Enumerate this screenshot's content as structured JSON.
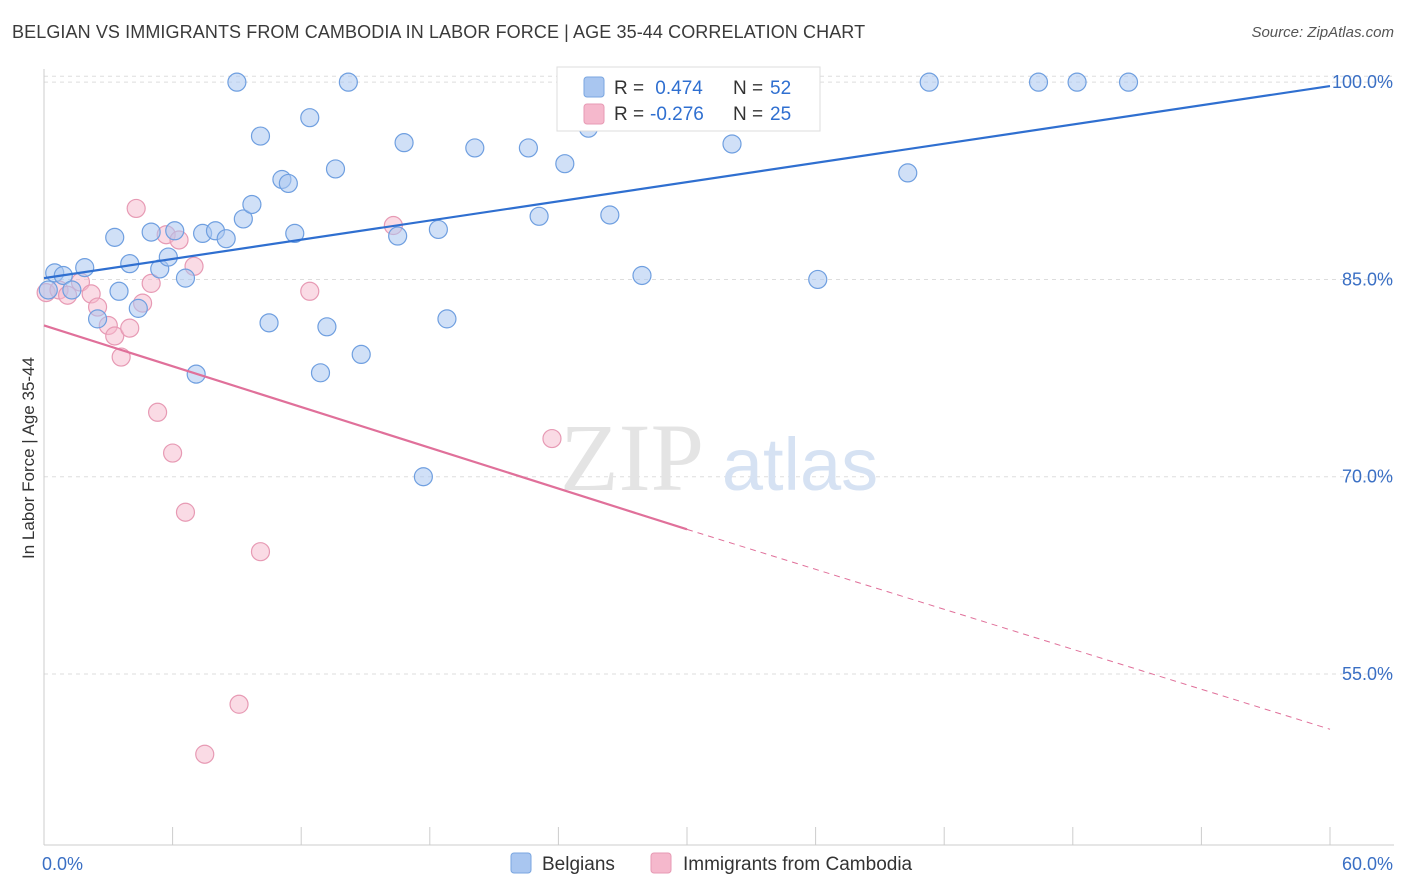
{
  "title": "BELGIAN VS IMMIGRANTS FROM CAMBODIA IN LABOR FORCE | AGE 35-44 CORRELATION CHART",
  "source": "Source: ZipAtlas.com",
  "watermark": {
    "zip": "ZIP",
    "atlas": "atlas"
  },
  "colors": {
    "blue": "#2f6fd0",
    "blue_fill": "#a9c6f0",
    "pink": "#e0709a",
    "pink_fill": "#f5b8cc",
    "grid": "#dddddd",
    "tick_label": "#3a6fc4"
  },
  "legend": {
    "rows": [
      {
        "r_label": "R =",
        "r_value": " 0.474",
        "n_label": "N =",
        "n_value": "52"
      },
      {
        "r_label": "R =",
        "r_value": "-0.276",
        "n_label": "N =",
        "n_value": "25"
      }
    ]
  },
  "chart_data": {
    "type": "scatter",
    "title": "BELGIAN VS IMMIGRANTS FROM CAMBODIA IN LABOR FORCE | AGE 35-44 CORRELATION CHART",
    "xlabel": "",
    "ylabel": "In Labor Force | Age 35-44",
    "xlim": [
      0,
      60
    ],
    "ylim": [
      42,
      101
    ],
    "x_tick_labels": [
      "0.0%",
      "60.0%"
    ],
    "y_ticks": [
      55,
      70,
      85,
      100
    ],
    "y_tick_labels": [
      "55.0%",
      "70.0%",
      "85.0%",
      "100.0%"
    ],
    "grid": true,
    "series": [
      {
        "name": "Belgians",
        "points": [
          [
            0.2,
            84.2
          ],
          [
            0.5,
            85.5
          ],
          [
            0.9,
            85.3
          ],
          [
            1.3,
            84.2
          ],
          [
            1.9,
            85.9
          ],
          [
            2.5,
            82.0
          ],
          [
            3.3,
            88.2
          ],
          [
            3.5,
            84.1
          ],
          [
            4.0,
            86.2
          ],
          [
            4.4,
            82.8
          ],
          [
            5.0,
            88.6
          ],
          [
            5.4,
            85.8
          ],
          [
            5.8,
            86.7
          ],
          [
            6.1,
            88.7
          ],
          [
            6.6,
            85.1
          ],
          [
            7.1,
            77.8
          ],
          [
            7.4,
            88.5
          ],
          [
            8.0,
            88.7
          ],
          [
            8.5,
            88.1
          ],
          [
            9.0,
            100.0
          ],
          [
            9.3,
            89.6
          ],
          [
            9.7,
            90.7
          ],
          [
            10.1,
            95.9
          ],
          [
            10.5,
            81.7
          ],
          [
            11.1,
            92.6
          ],
          [
            11.4,
            92.3
          ],
          [
            11.7,
            88.5
          ],
          [
            12.4,
            97.3
          ],
          [
            12.9,
            77.9
          ],
          [
            13.2,
            81.4
          ],
          [
            13.6,
            93.4
          ],
          [
            14.2,
            100.0
          ],
          [
            14.8,
            79.3
          ],
          [
            16.5,
            88.3
          ],
          [
            16.8,
            95.4
          ],
          [
            17.7,
            70.0
          ],
          [
            18.4,
            88.8
          ],
          [
            18.8,
            82.0
          ],
          [
            20.1,
            95.0
          ],
          [
            22.6,
            95.0
          ],
          [
            23.1,
            89.8
          ],
          [
            24.3,
            93.8
          ],
          [
            25.4,
            96.5
          ],
          [
            26.4,
            89.9
          ],
          [
            27.9,
            85.3
          ],
          [
            32.1,
            95.3
          ],
          [
            36.1,
            85.0
          ],
          [
            40.3,
            93.1
          ],
          [
            41.3,
            100.0
          ],
          [
            46.4,
            100.0
          ],
          [
            48.2,
            100.0
          ],
          [
            50.6,
            100.0
          ]
        ]
      },
      {
        "name": "Immigrants from Cambodia",
        "points": [
          [
            0.1,
            84.0
          ],
          [
            0.7,
            84.2
          ],
          [
            1.1,
            83.8
          ],
          [
            1.7,
            84.8
          ],
          [
            2.2,
            83.9
          ],
          [
            2.5,
            82.9
          ],
          [
            3.0,
            81.5
          ],
          [
            3.3,
            80.7
          ],
          [
            3.6,
            79.1
          ],
          [
            4.0,
            81.3
          ],
          [
            4.3,
            90.4
          ],
          [
            4.6,
            83.2
          ],
          [
            5.0,
            84.7
          ],
          [
            5.3,
            74.9
          ],
          [
            5.7,
            88.4
          ],
          [
            6.0,
            71.8
          ],
          [
            6.3,
            88.0
          ],
          [
            6.6,
            67.3
          ],
          [
            7.0,
            86.0
          ],
          [
            7.5,
            48.9
          ],
          [
            9.1,
            52.7
          ],
          [
            10.1,
            64.3
          ],
          [
            12.4,
            84.1
          ],
          [
            16.3,
            89.1
          ],
          [
            23.7,
            72.9
          ]
        ]
      }
    ],
    "trendlines": [
      {
        "series": "Belgians",
        "from": [
          0,
          85.1
        ],
        "to": [
          60,
          99.7
        ],
        "style": "solid"
      },
      {
        "series": "Immigrants from Cambodia",
        "from": [
          0,
          81.5
        ],
        "to": [
          30,
          66.0
        ],
        "style": "solid"
      },
      {
        "series": "Immigrants from Cambodia",
        "from": [
          30,
          66.0
        ],
        "to": [
          60,
          50.8
        ],
        "style": "dashed"
      }
    ],
    "legend_position": "top-center"
  }
}
